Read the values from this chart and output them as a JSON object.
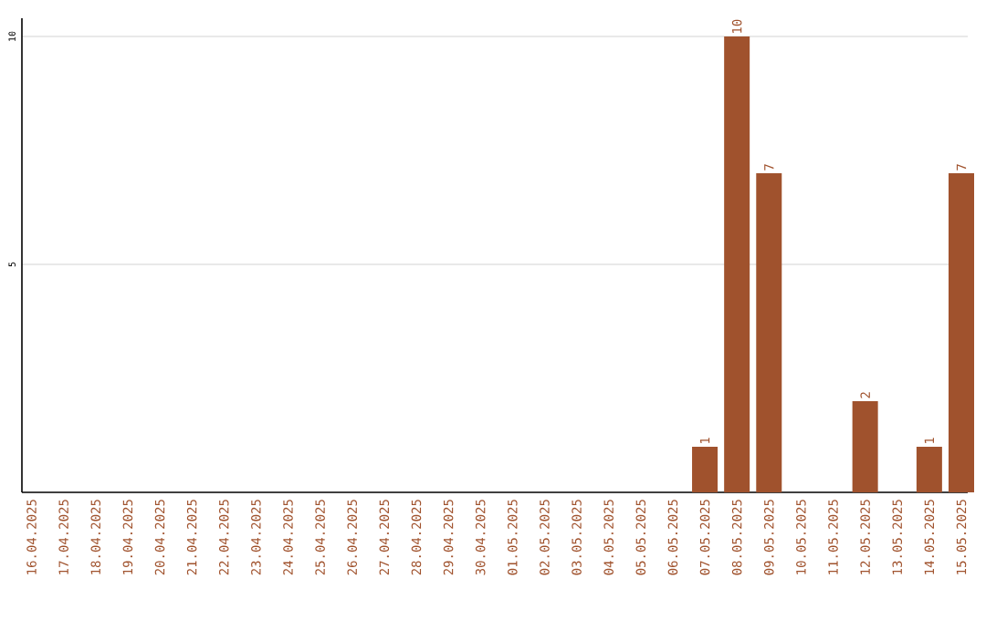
{
  "chart_data": {
    "type": "bar",
    "categories": [
      "16.04.2025",
      "17.04.2025",
      "18.04.2025",
      "19.04.2025",
      "20.04.2025",
      "21.04.2025",
      "22.04.2025",
      "23.04.2025",
      "24.04.2025",
      "25.04.2025",
      "26.04.2025",
      "27.04.2025",
      "28.04.2025",
      "29.04.2025",
      "30.04.2025",
      "01.05.2025",
      "02.05.2025",
      "03.05.2025",
      "04.05.2025",
      "05.05.2025",
      "06.05.2025",
      "07.05.2025",
      "08.05.2025",
      "09.05.2025",
      "10.05.2025",
      "11.05.2025",
      "12.05.2025",
      "13.05.2025",
      "14.05.2025",
      "15.05.2025"
    ],
    "values": [
      0,
      0,
      0,
      0,
      0,
      0,
      0,
      0,
      0,
      0,
      0,
      0,
      0,
      0,
      0,
      0,
      0,
      0,
      0,
      0,
      0,
      1,
      10,
      7,
      0,
      0,
      2,
      0,
      1,
      7
    ],
    "value_labels": [
      null,
      null,
      null,
      null,
      null,
      null,
      null,
      null,
      null,
      null,
      null,
      null,
      null,
      null,
      null,
      null,
      null,
      null,
      null,
      null,
      null,
      "1",
      "10",
      "7",
      null,
      null,
      "2",
      null,
      "1",
      "7"
    ],
    "color": "#a0522d",
    "ylim": [
      0,
      10.4
    ],
    "yticks": [
      5,
      10
    ],
    "grid": "y"
  }
}
